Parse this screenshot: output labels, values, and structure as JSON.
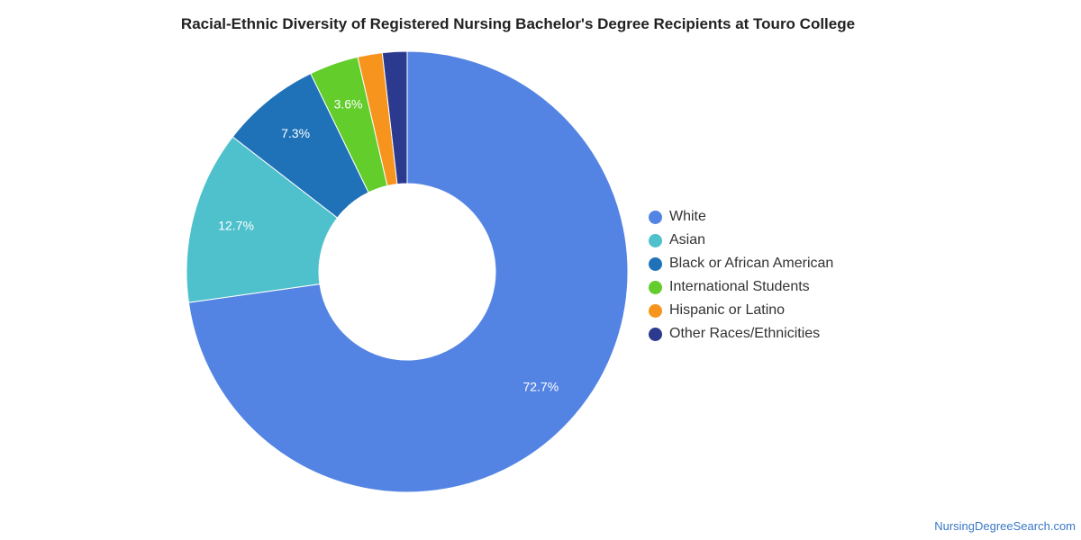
{
  "chart_data": {
    "type": "pie",
    "variant": "donut",
    "title": "Racial-Ethnic Diversity of Registered Nursing Bachelor's Degree Recipients at Touro College",
    "categories": [
      "White",
      "Asian",
      "Black or African American",
      "International Students",
      "Hispanic or Latino",
      "Other Races/Ethnicities"
    ],
    "values": [
      72.7,
      12.7,
      7.3,
      3.6,
      1.8,
      1.8
    ],
    "data_labels": [
      "72.7%",
      "12.7%",
      "7.3%",
      "3.6%",
      "",
      ""
    ],
    "colors": [
      "#5484e3",
      "#4fc1cc",
      "#1f72b8",
      "#63cd2c",
      "#f7941d",
      "#2b3a8f"
    ],
    "legend_position": "right",
    "start_angle": "top, clockwise"
  },
  "watermark": "NursingDegreeSearch.com"
}
